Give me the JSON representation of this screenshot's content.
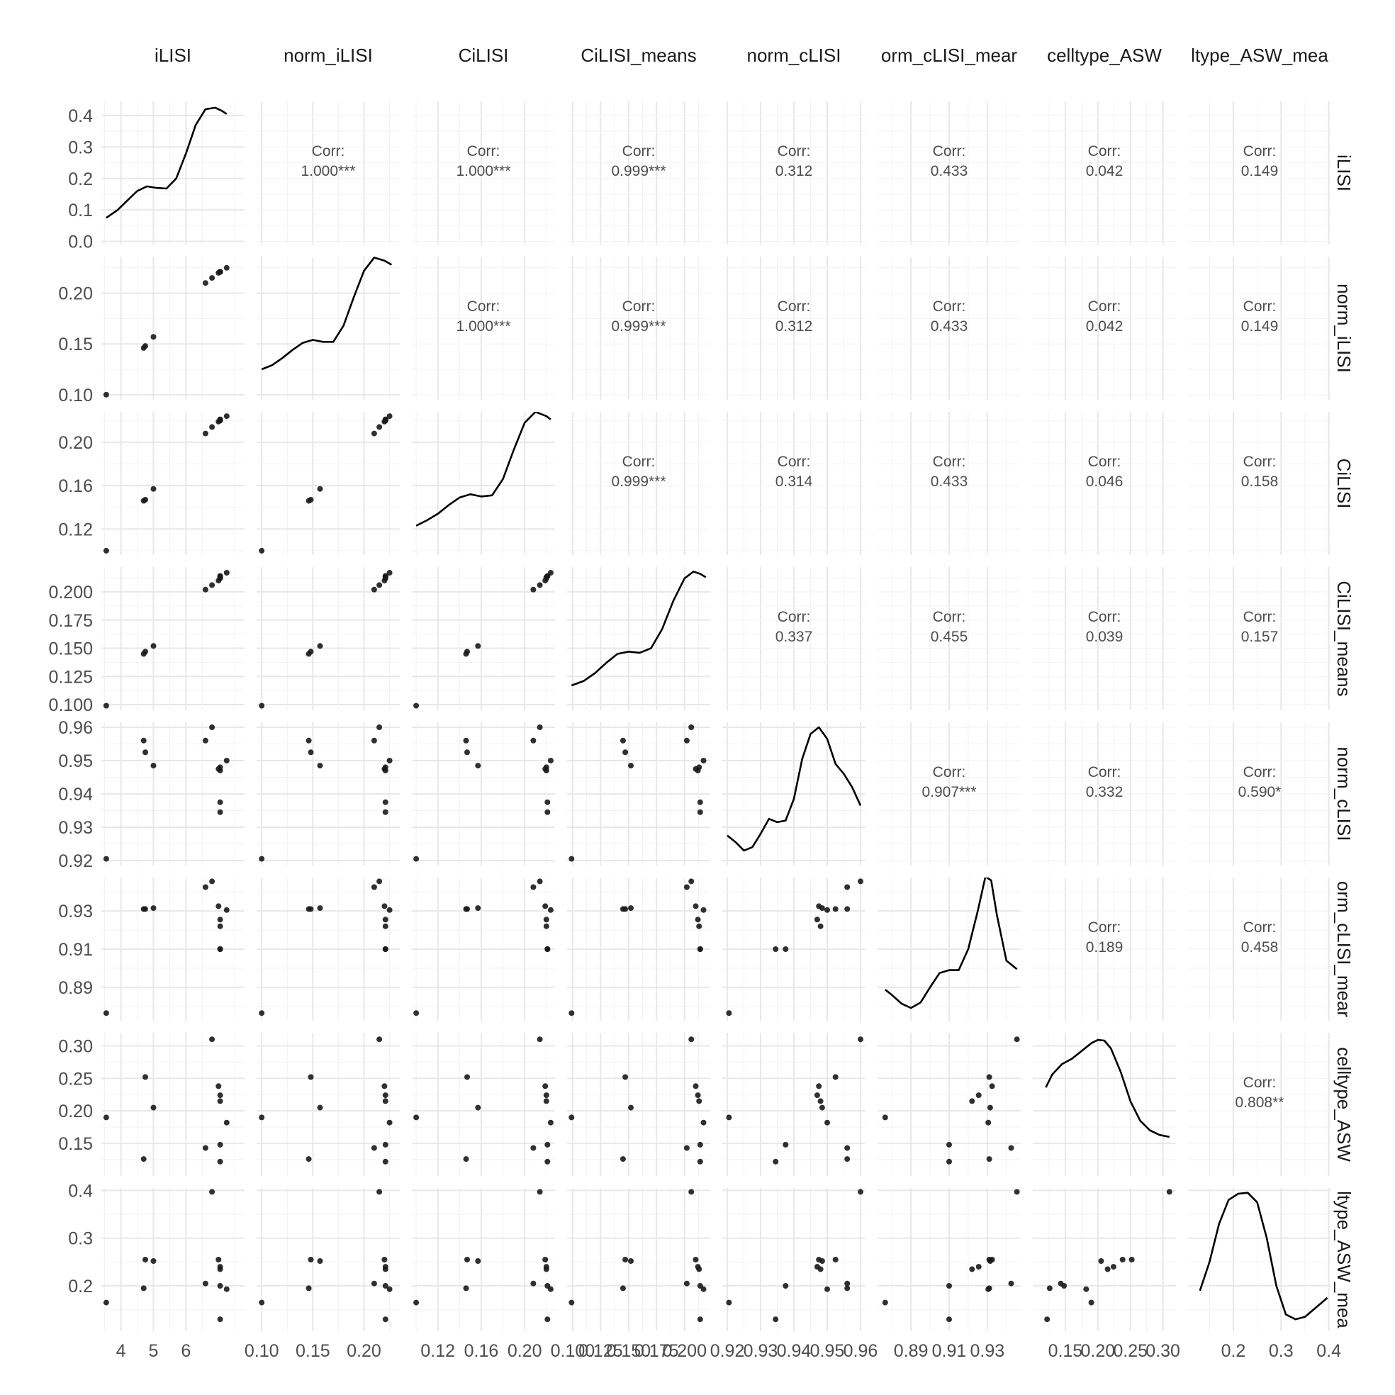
{
  "chart_data": {
    "type": "scatter-matrix",
    "variables": [
      "iLISI",
      "norm_iLISI",
      "CiLISI",
      "CiLISI_means",
      "norm_cLISI",
      "norm_cLISI_means",
      "celltype_ASW",
      "celltype_ASW_means"
    ],
    "column_labels": [
      "iLISI",
      "norm_iLISI",
      "CiLISI",
      "CiLISI_means",
      "norm_cLISI",
      "orm_cLISI_mear",
      "celltype_ASW",
      "ltype_ASW_mea"
    ],
    "row_labels": [
      "iLISI",
      "norm_iLISI",
      "CiLISI",
      "CiLISI_means",
      "norm_cLISI",
      "orm_cLISI_mear",
      "celltype_ASW",
      "ltype_ASW_mea"
    ],
    "corr_prefix": "Corr:",
    "correlations": [
      {
        "row": 0,
        "col": 1,
        "value": "1.000***"
      },
      {
        "row": 0,
        "col": 2,
        "value": "1.000***"
      },
      {
        "row": 0,
        "col": 3,
        "value": "0.999***"
      },
      {
        "row": 0,
        "col": 4,
        "value": "0.312"
      },
      {
        "row": 0,
        "col": 5,
        "value": "0.433"
      },
      {
        "row": 0,
        "col": 6,
        "value": "0.042"
      },
      {
        "row": 0,
        "col": 7,
        "value": "0.149"
      },
      {
        "row": 1,
        "col": 2,
        "value": "1.000***"
      },
      {
        "row": 1,
        "col": 3,
        "value": "0.999***"
      },
      {
        "row": 1,
        "col": 4,
        "value": "0.312"
      },
      {
        "row": 1,
        "col": 5,
        "value": "0.433"
      },
      {
        "row": 1,
        "col": 6,
        "value": "0.042"
      },
      {
        "row": 1,
        "col": 7,
        "value": "0.149"
      },
      {
        "row": 2,
        "col": 3,
        "value": "0.999***"
      },
      {
        "row": 2,
        "col": 4,
        "value": "0.314"
      },
      {
        "row": 2,
        "col": 5,
        "value": "0.433"
      },
      {
        "row": 2,
        "col": 6,
        "value": "0.046"
      },
      {
        "row": 2,
        "col": 7,
        "value": "0.158"
      },
      {
        "row": 3,
        "col": 4,
        "value": "0.337"
      },
      {
        "row": 3,
        "col": 5,
        "value": "0.455"
      },
      {
        "row": 3,
        "col": 6,
        "value": "0.039"
      },
      {
        "row": 3,
        "col": 7,
        "value": "0.157"
      },
      {
        "row": 4,
        "col": 5,
        "value": "0.907***"
      },
      {
        "row": 4,
        "col": 6,
        "value": "0.332"
      },
      {
        "row": 4,
        "col": 7,
        "value": "0.590*"
      },
      {
        "row": 5,
        "col": 6,
        "value": "0.189"
      },
      {
        "row": 5,
        "col": 7,
        "value": "0.458"
      },
      {
        "row": 6,
        "col": 7,
        "value": "0.808**"
      }
    ],
    "x_axes": [
      {
        "range": [
          3.4,
          7.8
        ],
        "ticks": [
          4,
          5,
          6
        ],
        "tick_labels": [
          "4",
          "5",
          "6"
        ],
        "minor": [
          3.5,
          4.5,
          5.5,
          6.5,
          7.5
        ]
      },
      {
        "range": [
          0.095,
          0.235
        ],
        "ticks": [
          0.1,
          0.15,
          0.2
        ],
        "tick_labels": [
          "0.10",
          "0.15",
          "0.20"
        ],
        "minor": [
          0.125,
          0.175,
          0.225
        ]
      },
      {
        "range": [
          0.096,
          0.228
        ],
        "ticks": [
          0.12,
          0.16,
          0.2
        ],
        "tick_labels": [
          "0.12",
          "0.16",
          "0.20"
        ],
        "minor": [
          0.1,
          0.14,
          0.18,
          0.22
        ]
      },
      {
        "range": [
          0.095,
          0.223
        ],
        "ticks": [
          0.1,
          0.125,
          0.15,
          0.175,
          0.2
        ],
        "tick_labels": [
          "0.100",
          "0.125",
          "0.150",
          "0.175",
          "0.200"
        ],
        "minor": [
          0.1125,
          0.1375,
          0.1625,
          0.1875,
          0.2125
        ]
      },
      {
        "range": [
          0.9185,
          0.9615
        ],
        "ticks": [
          0.92,
          0.93,
          0.94,
          0.95,
          0.96
        ],
        "tick_labels": [
          "0.92",
          "0.93",
          "0.94",
          "0.95",
          "0.96"
        ],
        "minor": [
          0.925,
          0.935,
          0.945,
          0.955
        ]
      },
      {
        "range": [
          0.8725,
          0.9475
        ],
        "ticks": [
          0.89,
          0.91,
          0.93
        ],
        "tick_labels": [
          "0.89",
          "0.91",
          "0.93"
        ],
        "minor": [
          0.88,
          0.9,
          0.92,
          0.94
        ]
      },
      {
        "range": [
          0.1,
          0.32
        ],
        "ticks": [
          0.15,
          0.2,
          0.25,
          0.3
        ],
        "tick_labels": [
          "0.15",
          "0.20",
          "0.25",
          "0.30"
        ],
        "minor": [
          0.125,
          0.175,
          0.225,
          0.275
        ]
      },
      {
        "range": [
          0.105,
          0.405
        ],
        "ticks": [
          0.2,
          0.3,
          0.4
        ],
        "tick_labels": [
          "0.2",
          "0.3",
          "0.4"
        ],
        "minor": [
          0.15,
          0.25,
          0.35
        ]
      }
    ],
    "y_axes": [
      {
        "range": [
          -0.01,
          0.445
        ],
        "ticks": [
          0.0,
          0.1,
          0.2,
          0.3,
          0.4
        ],
        "tick_labels": [
          "0.0",
          "0.1",
          "0.2",
          "0.3",
          "0.4"
        ],
        "minor": [
          0.05,
          0.15,
          0.25,
          0.35
        ]
      },
      {
        "range": [
          0.095,
          0.236
        ],
        "ticks": [
          0.1,
          0.15,
          0.2
        ],
        "tick_labels": [
          "0.10",
          "0.15",
          "0.20"
        ],
        "minor": [
          0.125,
          0.175,
          0.225
        ]
      },
      {
        "range": [
          0.096,
          0.228
        ],
        "ticks": [
          0.12,
          0.16,
          0.2
        ],
        "tick_labels": [
          "0.12",
          "0.16",
          "0.20"
        ],
        "minor": [
          0.1,
          0.14,
          0.18,
          0.22
        ]
      },
      {
        "range": [
          0.095,
          0.222
        ],
        "ticks": [
          0.1,
          0.125,
          0.15,
          0.175,
          0.2
        ],
        "tick_labels": [
          "0.100",
          "0.125",
          "0.150",
          "0.175",
          "0.200"
        ],
        "minor": [
          0.1125,
          0.1375,
          0.1625,
          0.1875,
          0.2125
        ]
      },
      {
        "range": [
          0.9185,
          0.9615
        ],
        "ticks": [
          0.92,
          0.93,
          0.94,
          0.95,
          0.96
        ],
        "tick_labels": [
          "0.92",
          "0.93",
          "0.94",
          "0.95",
          "0.96"
        ],
        "minor": [
          0.925,
          0.935,
          0.945,
          0.955
        ]
      },
      {
        "range": [
          0.8725,
          0.9475
        ],
        "ticks": [
          0.89,
          0.91,
          0.93
        ],
        "tick_labels": [
          "0.89",
          "0.91",
          "0.93"
        ],
        "minor": [
          0.88,
          0.9,
          0.92,
          0.94
        ]
      },
      {
        "range": [
          0.1,
          0.32
        ],
        "ticks": [
          0.15,
          0.2,
          0.25,
          0.3
        ],
        "tick_labels": [
          "0.15",
          "0.20",
          "0.25",
          "0.30"
        ],
        "minor": [
          0.125,
          0.175,
          0.225,
          0.275
        ]
      },
      {
        "range": [
          0.105,
          0.405
        ],
        "ticks": [
          0.2,
          0.3,
          0.4
        ],
        "tick_labels": [
          "0.2",
          "0.3",
          "0.4"
        ],
        "minor": [
          0.15,
          0.25,
          0.35
        ]
      }
    ],
    "observations": [
      [
        3.55,
        0.1,
        0.1,
        0.099,
        0.9205,
        0.8765,
        0.19,
        0.165
      ],
      [
        4.7,
        0.146,
        0.146,
        0.145,
        0.956,
        0.931,
        0.126,
        0.195
      ],
      [
        4.75,
        0.148,
        0.147,
        0.147,
        0.9525,
        0.931,
        0.252,
        0.255
      ],
      [
        5.0,
        0.157,
        0.157,
        0.152,
        0.9485,
        0.9315,
        0.205,
        0.252
      ],
      [
        6.6,
        0.21,
        0.208,
        0.202,
        0.956,
        0.9425,
        0.143,
        0.205
      ],
      [
        6.8,
        0.215,
        0.214,
        0.206,
        0.96,
        0.9455,
        0.31,
        0.397
      ],
      [
        7.0,
        0.22,
        0.219,
        0.21,
        0.9475,
        0.9325,
        0.238,
        0.255
      ],
      [
        7.05,
        0.221,
        0.22,
        0.212,
        0.947,
        0.9255,
        0.224,
        0.24
      ],
      [
        7.05,
        0.221,
        0.22,
        0.213,
        0.948,
        0.922,
        0.215,
        0.235
      ],
      [
        7.05,
        0.221,
        0.221,
        0.214,
        0.9375,
        0.91,
        0.148,
        0.2
      ],
      [
        7.05,
        0.221,
        0.221,
        0.214,
        0.9345,
        0.91,
        0.122,
        0.13
      ],
      [
        7.25,
        0.225,
        0.224,
        0.217,
        0.95,
        0.9305,
        0.182,
        0.193
      ]
    ],
    "densities": [
      {
        "x": [
          3.55,
          3.9,
          4.2,
          4.5,
          4.8,
          5.1,
          5.4,
          5.7,
          6.0,
          6.3,
          6.6,
          6.9,
          7.1,
          7.25
        ],
        "y": [
          0.075,
          0.1,
          0.13,
          0.16,
          0.175,
          0.17,
          0.168,
          0.2,
          0.28,
          0.37,
          0.42,
          0.425,
          0.415,
          0.405
        ]
      },
      {
        "x": [
          0.1,
          0.11,
          0.12,
          0.13,
          0.14,
          0.15,
          0.16,
          0.17,
          0.18,
          0.19,
          0.2,
          0.21,
          0.22,
          0.227
        ],
        "y": [
          0.125,
          0.129,
          0.136,
          0.144,
          0.151,
          0.154,
          0.152,
          0.152,
          0.168,
          0.196,
          0.222,
          0.235,
          0.232,
          0.228
        ]
      },
      {
        "x": [
          0.1,
          0.11,
          0.12,
          0.13,
          0.14,
          0.15,
          0.16,
          0.17,
          0.18,
          0.19,
          0.2,
          0.21,
          0.22,
          0.224
        ],
        "y": [
          0.123,
          0.128,
          0.134,
          0.142,
          0.149,
          0.152,
          0.15,
          0.151,
          0.166,
          0.193,
          0.218,
          0.228,
          0.224,
          0.221
        ]
      },
      {
        "x": [
          0.099,
          0.11,
          0.12,
          0.13,
          0.14,
          0.15,
          0.16,
          0.17,
          0.18,
          0.19,
          0.2,
          0.208,
          0.214,
          0.219
        ],
        "y": [
          0.117,
          0.121,
          0.128,
          0.137,
          0.145,
          0.147,
          0.146,
          0.15,
          0.167,
          0.192,
          0.212,
          0.218,
          0.216,
          0.213
        ]
      },
      {
        "x": [
          0.92,
          0.9225,
          0.925,
          0.9275,
          0.93,
          0.9325,
          0.935,
          0.9375,
          0.94,
          0.9425,
          0.945,
          0.9475,
          0.95,
          0.9525,
          0.955,
          0.9575,
          0.96
        ],
        "y": [
          0.9275,
          0.9255,
          0.923,
          0.924,
          0.928,
          0.9325,
          0.9315,
          0.932,
          0.9385,
          0.9505,
          0.958,
          0.96,
          0.9565,
          0.949,
          0.946,
          0.942,
          0.9365
        ]
      },
      {
        "x": [
          0.8765,
          0.88,
          0.885,
          0.89,
          0.895,
          0.9,
          0.905,
          0.91,
          0.915,
          0.92,
          0.925,
          0.929,
          0.932,
          0.935,
          0.94,
          0.9455
        ],
        "y": [
          0.8888,
          0.886,
          0.8815,
          0.8792,
          0.882,
          0.89,
          0.8975,
          0.899,
          0.899,
          0.91,
          0.93,
          0.948,
          0.946,
          0.928,
          0.904,
          0.8995
        ]
      },
      {
        "x": [
          0.12,
          0.13,
          0.145,
          0.16,
          0.175,
          0.19,
          0.2,
          0.21,
          0.22,
          0.235,
          0.25,
          0.265,
          0.28,
          0.295,
          0.31
        ],
        "y": [
          0.236,
          0.256,
          0.272,
          0.28,
          0.292,
          0.304,
          0.309,
          0.308,
          0.296,
          0.26,
          0.215,
          0.185,
          0.17,
          0.163,
          0.16
        ]
      },
      {
        "x": [
          0.13,
          0.15,
          0.17,
          0.19,
          0.21,
          0.23,
          0.25,
          0.27,
          0.29,
          0.31,
          0.33,
          0.35,
          0.37,
          0.397
        ],
        "y": [
          0.19,
          0.25,
          0.33,
          0.38,
          0.393,
          0.395,
          0.375,
          0.3,
          0.2,
          0.14,
          0.13,
          0.135,
          0.152,
          0.175
        ]
      }
    ]
  }
}
